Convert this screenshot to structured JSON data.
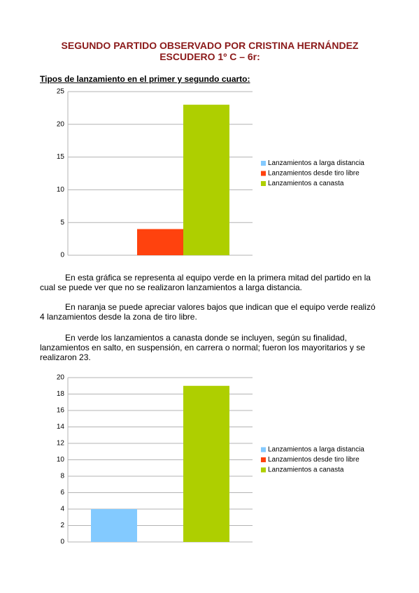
{
  "header": {
    "title": "SEGUNDO PARTIDO OBSERVADO POR CRISTINA HERNÁNDEZ ESCUDERO 1º C – 6r:",
    "subtitle": "Tipos de lanzamiento en el primer y segundo cuarto:"
  },
  "paragraphs": [
    "En esta gráfica se representa al equipo verde en la primera mitad del partido en la cual se puede ver que no se realizaron lanzamientos a larga distancia.",
    "En naranja se puede apreciar valores bajos que indican que el equipo verde realizó 4 lanzamientos desde la zona de tiro libre.",
    "En verde los lanzamientos a canasta donde se incluyen, según su finalidad, lanzamientos en salto, en suspensión, en carrera o normal; fueron los mayoritarios y se realizaron 23."
  ],
  "chart_data": [
    {
      "type": "bar",
      "categories": [
        null
      ],
      "series": [
        {
          "name": "Lanzamientos a larga distancia",
          "color": "#83caff",
          "values": [
            0
          ]
        },
        {
          "name": "Lanzamientos desde tiro libre",
          "color": "#ff420e",
          "values": [
            4
          ]
        },
        {
          "name": "Lanzamientos a canasta",
          "color": "#aecf00",
          "values": [
            23
          ]
        }
      ],
      "ylim": [
        0,
        25
      ],
      "yticks": [
        0,
        5,
        10,
        15,
        20,
        25
      ],
      "grid": true,
      "legend": "right"
    },
    {
      "type": "bar",
      "categories": [
        null
      ],
      "series": [
        {
          "name": "Lanzamientos a larga distancia",
          "color": "#83caff",
          "values": [
            4
          ]
        },
        {
          "name": "Lanzamientos desde tiro libre",
          "color": "#ff420e",
          "values": [
            0
          ]
        },
        {
          "name": "Lanzamientos a canasta",
          "color": "#aecf00",
          "values": [
            19
          ]
        }
      ],
      "ylim": [
        0,
        20
      ],
      "yticks": [
        0,
        2,
        4,
        6,
        8,
        10,
        12,
        14,
        16,
        18,
        20
      ],
      "grid": true,
      "legend": "right"
    }
  ]
}
